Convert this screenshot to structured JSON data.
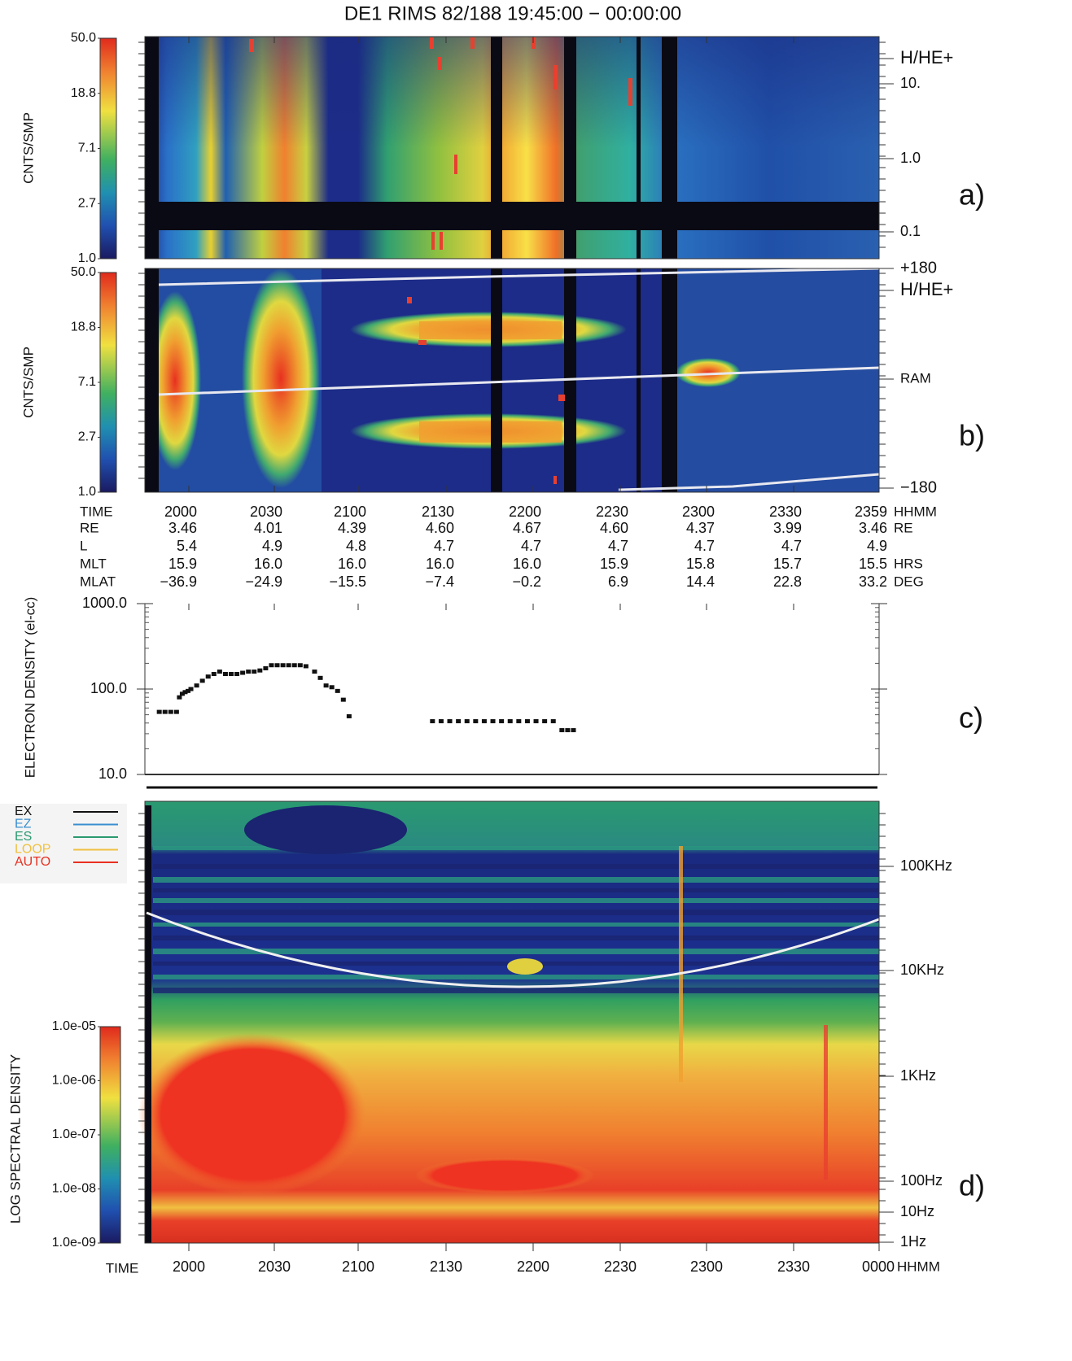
{
  "title": "DE1 RIMS   82/188   19:45:00 − 00:00:00",
  "panel_a": {
    "colorbar_ticks": [
      "50.0",
      "18.8",
      "7.1",
      "2.7",
      "1.0"
    ],
    "y_label": "CNTS/SMP",
    "right_labels": [
      "H/HE+",
      "10.",
      "1.0",
      "0.1"
    ],
    "letter": "a)"
  },
  "panel_b": {
    "colorbar_ticks": [
      "50.0",
      "18.8",
      "7.1",
      "2.7",
      "1.0"
    ],
    "y_label": "CNTS/SMP",
    "right_labels": [
      "+180",
      "H/HE+",
      "RAM",
      "−180"
    ],
    "letter": "b)"
  },
  "ephemeris": {
    "rows": [
      {
        "label": "TIME",
        "values": [
          "2000",
          "2030",
          "2100",
          "2130",
          "2200",
          "2230",
          "2300",
          "2330",
          "2359"
        ],
        "unit": "HHMM"
      },
      {
        "label": "RE",
        "values": [
          "3.46",
          "4.01",
          "4.39",
          "4.60",
          "4.67",
          "4.60",
          "4.37",
          "3.99",
          "3.46"
        ],
        "unit": "RE"
      },
      {
        "label": "L",
        "values": [
          "5.4",
          "4.9",
          "4.8",
          "4.7",
          "4.7",
          "4.7",
          "4.7",
          "4.7",
          "4.9"
        ]
      },
      {
        "label": "MLT",
        "values": [
          "15.9",
          "16.0",
          "16.0",
          "16.0",
          "16.0",
          "15.9",
          "15.8",
          "15.7",
          "15.5"
        ],
        "unit": "HRS"
      },
      {
        "label": "MLAT",
        "values": [
          "−36.9",
          "−24.9",
          "−15.5",
          "−7.4",
          "−0.2",
          "6.9",
          "14.4",
          "22.8",
          "33.2"
        ],
        "unit": "DEG"
      }
    ]
  },
  "chart_data": {
    "type": "scatter",
    "y_label": "ELECTRON DENSITY (el-cc)",
    "letter": "c)",
    "log_scale": true,
    "color": "#111111",
    "xlim": [
      1945,
      2400
    ],
    "ylim": [
      10,
      1000
    ],
    "yticks": [
      {
        "value": 1000,
        "label": "1000.0"
      },
      {
        "value": 100,
        "label": "100.0"
      },
      {
        "value": 10,
        "label": "10.0"
      }
    ],
    "x": [
      1950,
      1952,
      1954,
      1956,
      1957,
      1958,
      1959,
      2000,
      2001,
      2003,
      2005,
      2007,
      2009,
      2011,
      2013,
      2015,
      2017,
      2019,
      2021,
      2023,
      2025,
      2027,
      2029,
      2031,
      2033,
      2035,
      2037,
      2039,
      2041,
      2044,
      2046,
      2048,
      2050,
      2052,
      2054,
      2056,
      2125,
      2128,
      2131,
      2134,
      2137,
      2140,
      2143,
      2146,
      2149,
      2152,
      2155,
      2158,
      2201,
      2204,
      2207,
      2210,
      2212,
      2214
    ],
    "values": [
      54,
      54,
      54,
      54,
      80,
      88,
      92,
      95,
      100,
      110,
      125,
      140,
      150,
      160,
      150,
      150,
      150,
      155,
      160,
      160,
      165,
      175,
      190,
      190,
      190,
      190,
      190,
      190,
      185,
      160,
      135,
      110,
      105,
      95,
      75,
      48,
      42,
      42,
      42,
      42,
      42,
      42,
      42,
      42,
      42,
      42,
      42,
      42,
      42,
      42,
      42,
      33,
      33,
      33
    ]
  },
  "panel_d": {
    "legend": [
      {
        "name": "EX",
        "color": "#111111"
      },
      {
        "name": "EZ",
        "color": "#3a8fd0"
      },
      {
        "name": "ES",
        "color": "#2a9a70"
      },
      {
        "name": "LOOP",
        "color": "#f0c040"
      },
      {
        "name": "AUTO",
        "color": "#e83020"
      }
    ],
    "colorbar_ticks": [
      "1.0e-05",
      "1.0e-06",
      "1.0e-07",
      "1.0e-08",
      "1.0e-09"
    ],
    "y_label": "LOG SPECTRAL DENSITY",
    "right_labels": [
      "100KHz",
      "10KHz",
      "1KHz",
      "100Hz",
      "10Hz",
      "1Hz"
    ],
    "letter": "d)",
    "x_title": "TIME",
    "x_labels": [
      "2000",
      "2030",
      "2100",
      "2130",
      "2200",
      "2230",
      "2300",
      "2330",
      "0000"
    ],
    "x_unit": "HHMM"
  }
}
